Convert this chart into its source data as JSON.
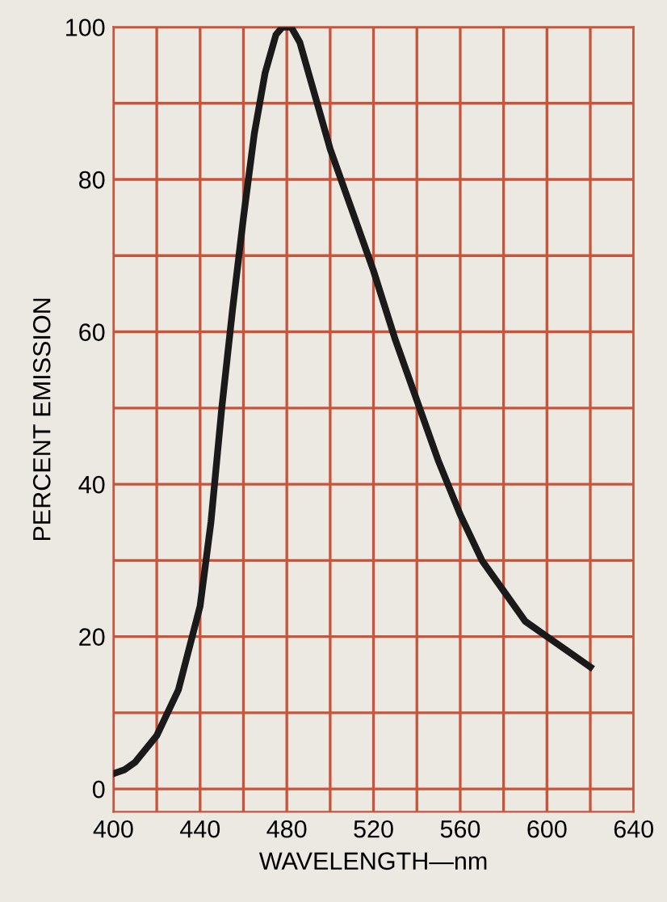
{
  "chart_data": {
    "type": "line",
    "xlabel": "WAVELENGTH—nm",
    "ylabel": "PERCENT EMISSION",
    "x": [
      400,
      405,
      410,
      420,
      430,
      440,
      445,
      450,
      455,
      460,
      465,
      470,
      475,
      478,
      482,
      486,
      490,
      495,
      500,
      510,
      520,
      530,
      540,
      550,
      560,
      570,
      580,
      590,
      600,
      610,
      620
    ],
    "series": [
      {
        "color": "#1a1a1a",
        "values": [
          2,
          2.5,
          3.5,
          7,
          13,
          24,
          35,
          50,
          63,
          75,
          86,
          94,
          99,
          100,
          100,
          98,
          94,
          89,
          84,
          76,
          68,
          59,
          51,
          43,
          36,
          30,
          26,
          22,
          20,
          18,
          16
        ]
      }
    ],
    "xlim": [
      400,
      640
    ],
    "ylim": [
      -3,
      100
    ],
    "xticks": [
      400,
      {
        "value": 420,
        "label": null
      },
      440,
      {
        "value": 460,
        "label": null
      },
      480,
      {
        "value": 500,
        "label": null
      },
      520,
      {
        "value": 540,
        "label": null
      },
      560,
      {
        "value": 580,
        "label": null
      },
      600,
      {
        "value": 620,
        "label": null
      },
      640
    ],
    "yticks": [
      0,
      {
        "value": 10,
        "label": null
      },
      20,
      {
        "value": 30,
        "label": null
      },
      40,
      {
        "value": 50,
        "label": null
      },
      60,
      {
        "value": 70,
        "label": null
      },
      80,
      {
        "value": 90,
        "label": null
      },
      100
    ],
    "grid": true,
    "marker": "none",
    "line_style": "solid"
  }
}
